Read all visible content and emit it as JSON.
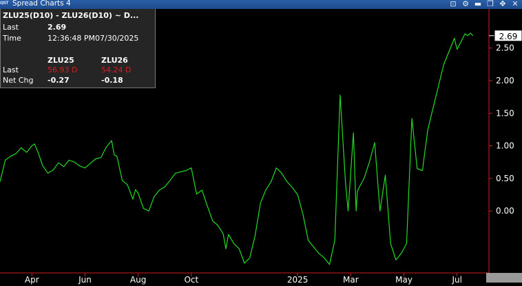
{
  "window": {
    "badge": "QST",
    "title": "Spread Charts 4",
    "controls": [
      {
        "name": "link-icon",
        "glyph": "⊡"
      },
      {
        "name": "gear-icon",
        "glyph": "⚙"
      },
      {
        "name": "minimize-icon",
        "glyph": "▬"
      },
      {
        "name": "restore-icon",
        "glyph": "❐"
      },
      {
        "name": "move-icon",
        "glyph": "✥"
      },
      {
        "name": "close-icon",
        "glyph": "✕"
      }
    ]
  },
  "info_panel": {
    "symbol": "ZLU25(D10) - ZLU26(D10) ~ D...",
    "last_label": "Last",
    "last_value": "2.69",
    "time_label": "Time",
    "time_value": "12:36:48 PM07/30/2025",
    "leg1_symbol": "ZLU25",
    "leg2_symbol": "ZLU26",
    "leg_last_label": "Last",
    "leg1_last": "56.93 D",
    "leg2_last": "54.24 D",
    "netchg_label": "Net Chg",
    "leg1_netchg": "-0.27",
    "leg2_netchg": "-0.18"
  },
  "chart_data": {
    "type": "line",
    "line_color": "#22dd22",
    "y_ticks": [
      "2.50",
      "2.00",
      "1.50",
      "1.00",
      "0.50",
      "0.00"
    ],
    "ylim": [
      -0.95,
      3.1
    ],
    "last_value_label": "2.69",
    "x_ticks": [
      {
        "label": "Apr",
        "x": 3.0
      },
      {
        "label": "Jun",
        "x": 5.0
      },
      {
        "label": "Aug",
        "x": 7.0
      },
      {
        "label": "Oct",
        "x": 9.0
      },
      {
        "label": "2025",
        "x": 13.0
      },
      {
        "label": "Mar",
        "x": 15.0
      },
      {
        "label": "May",
        "x": 17.0
      },
      {
        "label": "Jul",
        "x": 19.0
      }
    ],
    "xlim": [
      1.8,
      20.2
    ],
    "series": [
      {
        "x": [
          1.8,
          2.0,
          2.2,
          2.4,
          2.6,
          2.8,
          3.0,
          3.1,
          3.25,
          3.4,
          3.6,
          3.8,
          4.0,
          4.2,
          4.4,
          4.6,
          4.8,
          5.0,
          5.2,
          5.4,
          5.6,
          5.8,
          6.0,
          6.1,
          6.2,
          6.4,
          6.6,
          6.8,
          6.9,
          7.0,
          7.2,
          7.4,
          7.6,
          7.8,
          8.0,
          8.2,
          8.4,
          8.6,
          8.8,
          9.0,
          9.2,
          9.4,
          9.6,
          9.8,
          10.0,
          10.2,
          10.3,
          10.4,
          10.6,
          10.8,
          11.0,
          11.2,
          11.4,
          11.6,
          11.8,
          12.0,
          12.2,
          12.4,
          12.6,
          12.8,
          13.0,
          13.2,
          13.4,
          13.6,
          13.8,
          14.0,
          14.2,
          14.4,
          14.6,
          14.8,
          14.9,
          15.1,
          15.2,
          15.25,
          15.3,
          15.5,
          15.7,
          15.9,
          16.1,
          16.3,
          16.5,
          16.7,
          16.9,
          17.1,
          17.3,
          17.5,
          17.7,
          17.8,
          17.9,
          18.05,
          18.2,
          18.5,
          18.7,
          18.9,
          19.0,
          19.1,
          19.3,
          19.4,
          19.5,
          19.6
        ],
        "y": [
          0.45,
          0.78,
          0.84,
          0.88,
          0.97,
          0.9,
          1.0,
          1.03,
          0.88,
          0.7,
          0.58,
          0.63,
          0.74,
          0.68,
          0.78,
          0.75,
          0.69,
          0.66,
          0.73,
          0.8,
          0.82,
          0.98,
          1.08,
          0.86,
          0.84,
          0.47,
          0.4,
          0.18,
          0.33,
          0.27,
          0.04,
          0.0,
          0.22,
          0.32,
          0.37,
          0.47,
          0.58,
          0.6,
          0.62,
          0.66,
          0.26,
          0.32,
          0.08,
          -0.15,
          -0.22,
          -0.35,
          -0.58,
          -0.36,
          -0.5,
          -0.58,
          -0.8,
          -0.72,
          -0.38,
          0.12,
          0.32,
          0.45,
          0.66,
          0.58,
          0.45,
          0.36,
          0.25,
          -0.05,
          -0.45,
          -0.55,
          -0.65,
          -0.72,
          -0.82,
          -0.45,
          1.78,
          0.45,
          0.0,
          1.2,
          0.0,
          0.3,
          0.35,
          0.5,
          0.75,
          1.05,
          0.0,
          0.55,
          -0.5,
          -0.75,
          -0.65,
          -0.5,
          1.42,
          0.65,
          0.62,
          0.95,
          1.25,
          1.5,
          1.75,
          2.25,
          2.45,
          2.65,
          2.48,
          2.56,
          2.72,
          2.69,
          2.73,
          2.69
        ]
      }
    ]
  }
}
